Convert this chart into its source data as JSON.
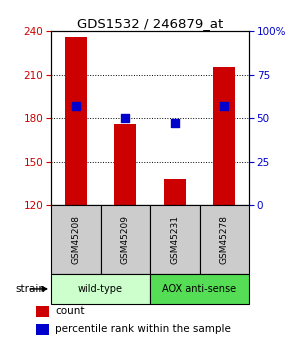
{
  "title": "GDS1532 / 246879_at",
  "samples": [
    "GSM45208",
    "GSM45209",
    "GSM45231",
    "GSM45278"
  ],
  "counts": [
    236,
    176,
    138,
    215
  ],
  "percentiles": [
    57,
    50,
    47,
    57
  ],
  "ylim_left": [
    120,
    240
  ],
  "ylim_right": [
    0,
    100
  ],
  "yticks_left": [
    120,
    150,
    180,
    210,
    240
  ],
  "yticks_right": [
    0,
    25,
    50,
    75,
    100
  ],
  "bar_color": "#cc0000",
  "dot_color": "#0000cc",
  "groups": [
    {
      "label": "wild-type",
      "samples": [
        0,
        1
      ],
      "color": "#ccffcc"
    },
    {
      "label": "AOX anti-sense",
      "samples": [
        2,
        3
      ],
      "color": "#55dd55"
    }
  ],
  "left_tick_color": "#cc0000",
  "right_tick_color": "#0000cc",
  "bar_width": 0.45,
  "dot_size": 40,
  "sample_box_color": "#cccccc",
  "fig_width": 3.0,
  "fig_height": 3.45,
  "dpi": 100
}
